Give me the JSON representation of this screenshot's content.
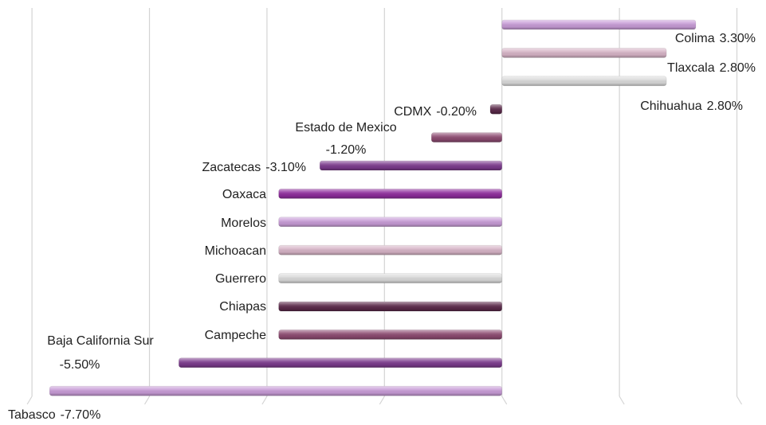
{
  "chart_data": {
    "type": "barh",
    "categories": [
      "Colima",
      "Tlaxcala",
      "Chihuahua",
      "CDMX",
      "Estado de Mexico",
      "Zacatecas",
      "Oaxaca",
      "Morelos",
      "Michoacan",
      "Guerrero",
      "Chiapas",
      "Campeche",
      "Baja California Sur",
      "Tabasco"
    ],
    "values": [
      3.3,
      2.8,
      2.8,
      -0.2,
      -1.2,
      -3.1,
      -3.8,
      -3.8,
      -3.8,
      -3.8,
      -3.8,
      -3.8,
      -5.5,
      -7.7
    ],
    "value_labels": [
      "3.30%",
      "2.80%",
      "2.80%",
      "-0.20%",
      "-1.20%",
      "-3.10%",
      null,
      null,
      null,
      null,
      null,
      null,
      "-5.50%",
      "-7.70%"
    ],
    "colors": [
      "#c79bd6",
      "#d6b3c6",
      "#d9d9d9",
      "#5b2a4a",
      "#8c4a70",
      "#7b3a8c",
      "#8e2c9c",
      "#c79bd6",
      "#d6b3c6",
      "#d9d9d9",
      "#5b2a4a",
      "#8c4a70",
      "#7b3a8c",
      "#c79bd6"
    ],
    "xlim": [
      -8.3,
      4.4
    ],
    "xticks": [
      -8,
      -6,
      -4,
      -2,
      0,
      2,
      4
    ],
    "grid": true
  }
}
